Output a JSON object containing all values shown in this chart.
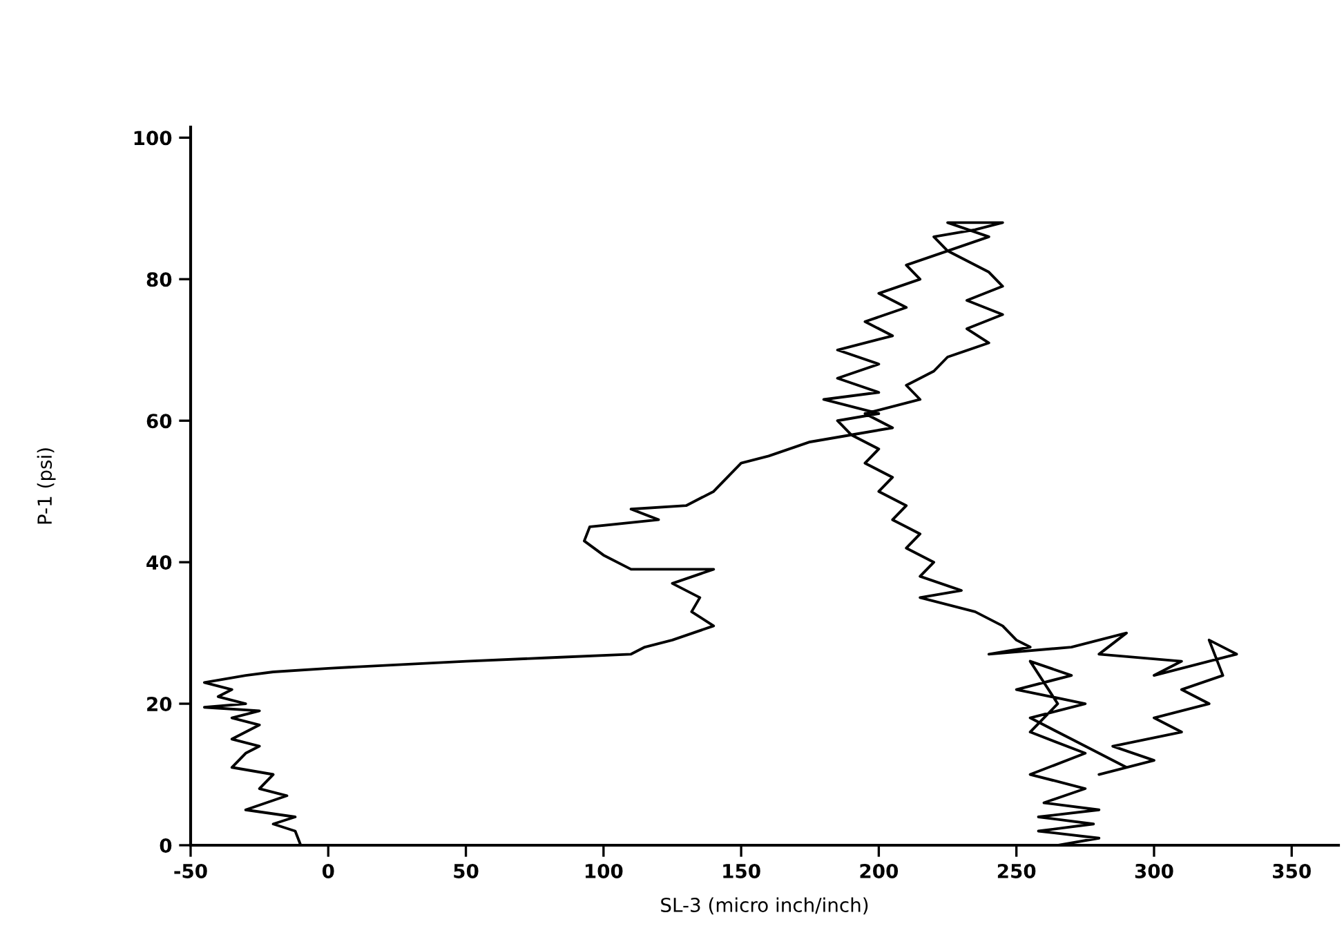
{
  "chart_data": {
    "type": "line",
    "xlabel": "SL-3 (micro inch/inch)",
    "ylabel": "P-1 (psi)",
    "xlim": [
      -50,
      367
    ],
    "ylim": [
      0,
      101.5
    ],
    "xticks": [
      -50,
      0,
      50,
      100,
      150,
      200,
      250,
      300,
      350
    ],
    "yticks": [
      0,
      20,
      40,
      60,
      80,
      100
    ],
    "grid": false,
    "legend": false,
    "marker": "none",
    "line_style": "solid",
    "series": [
      {
        "color": "#000000",
        "x": [
          -10,
          -12,
          -20,
          -12,
          -30,
          -15,
          -25,
          -20,
          -35,
          -30,
          -25,
          -35,
          -25,
          -35,
          -25,
          -45,
          -30,
          -40,
          -35,
          -45,
          -30,
          -20,
          0,
          50,
          80,
          110,
          115,
          125,
          140,
          132,
          135,
          125,
          140,
          110,
          100,
          93,
          95,
          120,
          110,
          130,
          140,
          145,
          150,
          160,
          175,
          190,
          185,
          200,
          180,
          200,
          185,
          200,
          185,
          205,
          195,
          210,
          200,
          215,
          210,
          225,
          220,
          235,
          245,
          225,
          240,
          225,
          240,
          245,
          232,
          245,
          232,
          240,
          225,
          220,
          210,
          215,
          195,
          205,
          190,
          200,
          195,
          205,
          200,
          210,
          205,
          215,
          210,
          220,
          215,
          230,
          215,
          235,
          245,
          250,
          255,
          240,
          270,
          290,
          280,
          310,
          300,
          330,
          320,
          325,
          310,
          320,
          300,
          310,
          285,
          300,
          280,
          290,
          270,
          255,
          275,
          250,
          270,
          255,
          265,
          255,
          275,
          255,
          275,
          260,
          280,
          258,
          278,
          258,
          280,
          265
        ],
        "values": [
          0,
          2,
          3,
          4,
          5,
          7,
          8,
          10,
          11,
          13,
          14,
          15,
          17,
          18,
          19,
          19.5,
          20,
          21,
          22,
          23,
          24,
          24.5,
          25,
          26,
          26.5,
          27,
          28,
          29,
          31,
          33,
          35,
          37,
          39,
          39,
          41,
          43,
          45,
          46,
          47.5,
          48,
          50,
          52,
          54,
          55,
          57,
          58,
          60,
          61,
          63,
          64,
          66,
          68,
          70,
          72,
          74,
          76,
          78,
          80,
          82,
          84,
          86,
          87,
          88,
          88,
          86,
          84,
          81,
          79,
          77,
          75,
          73,
          71,
          69,
          67,
          65,
          63,
          61,
          59,
          58,
          56,
          54,
          52,
          50,
          48,
          46,
          44,
          42,
          40,
          38,
          36,
          35,
          33,
          31,
          29,
          28,
          27,
          28,
          30,
          27,
          26,
          24,
          27,
          29,
          24,
          22,
          20,
          18,
          16,
          14,
          12,
          10,
          11,
          15,
          18,
          20,
          22,
          24,
          26,
          20,
          16,
          13,
          10,
          8,
          6,
          5,
          4,
          3,
          2,
          1,
          0
        ]
      }
    ]
  }
}
